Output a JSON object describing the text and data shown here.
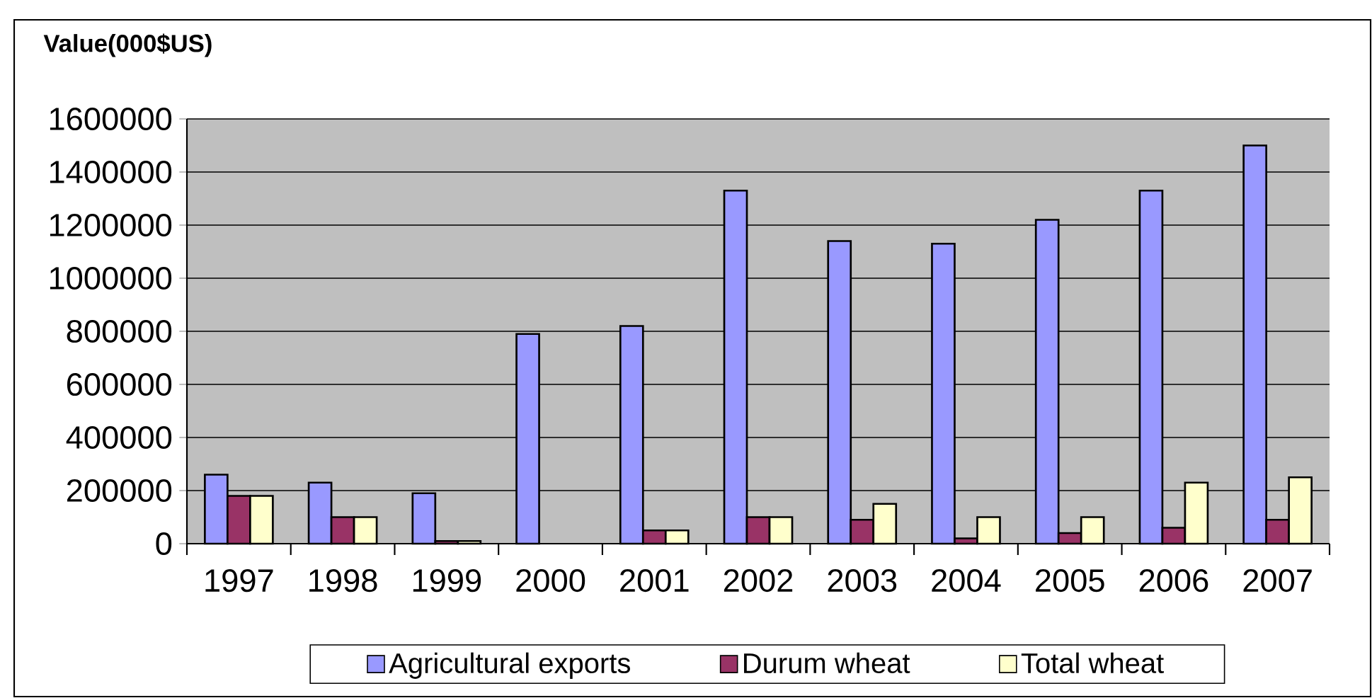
{
  "chart_data": {
    "type": "bar",
    "annotations": [
      "Value(000$US)"
    ],
    "categories": [
      "1997",
      "1998",
      "1999",
      "2000",
      "2001",
      "2002",
      "2003",
      "2004",
      "2005",
      "2006",
      "2007"
    ],
    "series": [
      {
        "name": "Agricultural exports",
        "color": "#9999ff",
        "values": [
          260000,
          230000,
          190000,
          790000,
          820000,
          1330000,
          1140000,
          1130000,
          1220000,
          1330000,
          1500000
        ]
      },
      {
        "name": "Durum wheat",
        "color": "#993366",
        "values": [
          180000,
          100000,
          10000,
          null,
          50000,
          100000,
          90000,
          20000,
          40000,
          60000,
          90000
        ]
      },
      {
        "name": "Total wheat",
        "color": "#ffffcc",
        "values": [
          180000,
          100000,
          10000,
          null,
          50000,
          100000,
          150000,
          100000,
          100000,
          230000,
          250000
        ]
      }
    ],
    "ylim": [
      0,
      1600000
    ],
    "yticks": [
      0,
      200000,
      400000,
      600000,
      800000,
      1000000,
      1200000,
      1400000,
      1600000
    ],
    "grid": "y",
    "legend": "bottom"
  }
}
